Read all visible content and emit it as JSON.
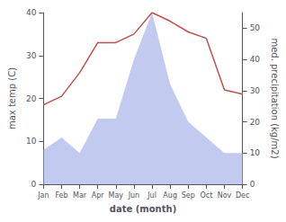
{
  "chart_data": {
    "type": "line",
    "xlabel": "date (month)",
    "ylabel": "max temp (C)",
    "y2label": "med. precipitation (kg/m2)",
    "categories": [
      "Jan",
      "Feb",
      "Mar",
      "Apr",
      "May",
      "Jun",
      "Jul",
      "Aug",
      "Sep",
      "Oct",
      "Nov",
      "Dec"
    ],
    "series": [
      {
        "type": "area",
        "axis": "y2",
        "color": "#aab4e8",
        "values": [
          11,
          15,
          10,
          21,
          21,
          40,
          55,
          32,
          20,
          15,
          10,
          10
        ]
      },
      {
        "type": "line",
        "color": "#c0504d",
        "values": [
          18.5,
          20.5,
          26,
          33,
          33,
          35,
          40,
          38,
          35.5,
          34,
          22,
          21
        ]
      }
    ],
    "ylim": [
      0,
      40
    ],
    "yticks": [
      0,
      10,
      20,
      30,
      40
    ],
    "y2lim": [
      0,
      55
    ],
    "y2ticks": [
      0,
      10,
      20,
      30,
      40,
      50
    ],
    "grid": false
  }
}
